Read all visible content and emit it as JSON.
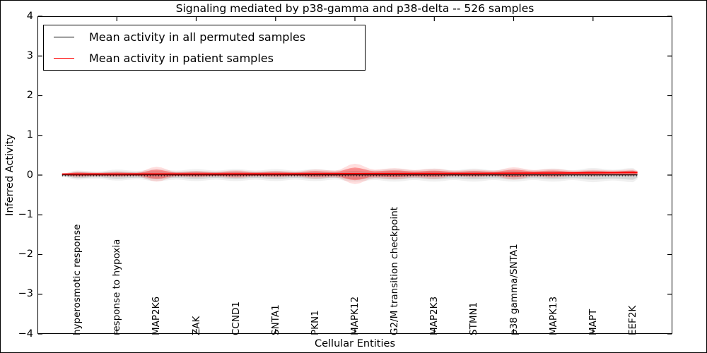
{
  "title": "Signaling mediated by p38-gamma and p38-delta -- 526 samples",
  "axes": {
    "ylabel": "Inferred Activity",
    "xlabel": "Cellular Entities",
    "ytick_labels": [
      "4",
      "3",
      "2",
      "1",
      "0",
      "−1",
      "−2",
      "−3",
      "−4"
    ]
  },
  "legend": {
    "items": [
      {
        "label": "Mean activity in all permuted samples",
        "color": "#000000"
      },
      {
        "label": "Mean activity in patient samples",
        "color": "#ff0000"
      }
    ]
  },
  "chart_data": {
    "type": "area",
    "subtype": "violin-strip",
    "title": "Signaling mediated by p38-gamma and p38-delta -- 526 samples",
    "xlabel": "Cellular Entities",
    "ylabel": "Inferred Activity",
    "ylim": [
      -4,
      4
    ],
    "xlim": [
      0,
      16
    ],
    "yticks": [
      4,
      3,
      2,
      1,
      0,
      -1,
      -2,
      -3,
      -4
    ],
    "xticks_minor_top": [
      2,
      4,
      6,
      8,
      10,
      12,
      14
    ],
    "grid": false,
    "legend_position": "upper left",
    "zero_line": {
      "style": "dotted",
      "y": 0,
      "color": "#000000"
    },
    "categories": [
      "hyperosmotic response",
      "response to hypoxia",
      "MAP2K6",
      "ZAK",
      "CCND1",
      "SNTA1",
      "PKN1",
      "MAPK12",
      "G2/M transition checkpoint",
      "MAP2K3",
      "STMN1",
      "p38 gamma/SNTA1",
      "MAPK13",
      "MAPT",
      "EEF2K"
    ],
    "series": [
      {
        "name": "Mean activity in all permuted samples",
        "color": "#000000",
        "line_style": "solid",
        "mean": [
          0,
          0,
          0,
          0,
          0,
          0,
          0,
          0,
          0,
          0,
          0,
          0,
          0,
          0,
          0
        ],
        "violin_halfwidth": [
          0.075,
          0.09,
          0.098,
          0.098,
          0.098,
          0.098,
          0.098,
          0.107,
          0.107,
          0.107,
          0.107,
          0.107,
          0.107,
          0.116,
          0.116
        ],
        "fill_opacity": 0.11
      },
      {
        "name": "Mean activity in patient samples",
        "color": "#ff0000",
        "line_style": "solid",
        "mean": [
          0.02,
          0.02,
          0.022,
          0.022,
          0.024,
          0.024,
          0.026,
          0.03,
          0.032,
          0.034,
          0.036,
          0.04,
          0.045,
          0.05,
          0.058
        ],
        "violin_halfwidth": [
          0.044,
          0.044,
          0.116,
          0.053,
          0.062,
          0.053,
          0.071,
          0.16,
          0.089,
          0.08,
          0.062,
          0.098,
          0.071,
          0.053,
          0.053
        ],
        "fill_opacity": 0.32
      }
    ]
  }
}
